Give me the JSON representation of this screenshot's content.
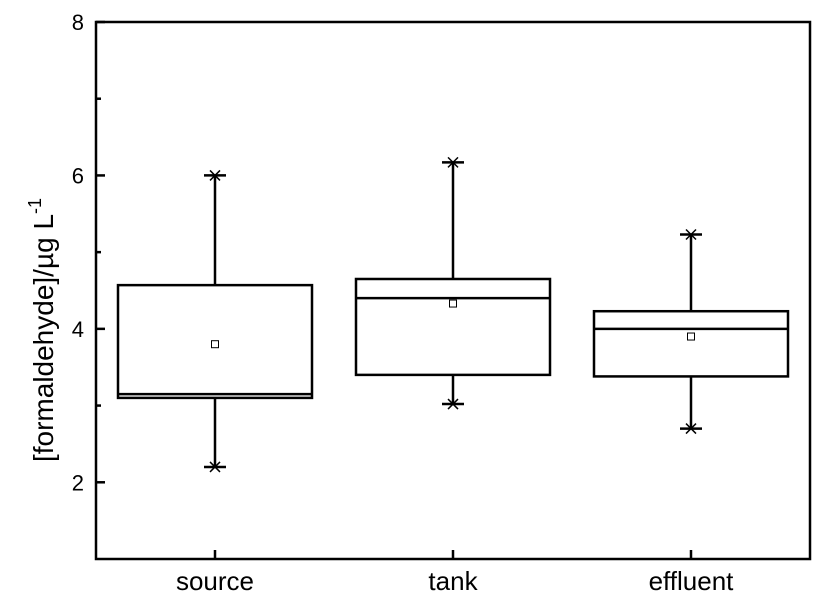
{
  "chart_data": {
    "type": "box",
    "ylabel": "[formaldehyde]/µg L",
    "ylabel_superscript": "-1",
    "ylim": [
      1,
      8
    ],
    "yticks_major": [
      2,
      4,
      6,
      8
    ],
    "yticks_minor": [
      3,
      5,
      7
    ],
    "categories": [
      "source",
      "tank",
      "effluent"
    ],
    "boxes": [
      {
        "category": "source",
        "whisker_low": 2.2,
        "q1": 3.1,
        "median": 3.15,
        "q3": 4.57,
        "whisker_high": 6.0,
        "mean": 3.8
      },
      {
        "category": "tank",
        "whisker_low": 3.02,
        "q1": 3.4,
        "median": 4.4,
        "q3": 4.65,
        "whisker_high": 6.17,
        "mean": 4.33
      },
      {
        "category": "effluent",
        "whisker_low": 2.7,
        "q1": 3.38,
        "median": 4.0,
        "q3": 4.23,
        "whisker_high": 5.23,
        "mean": 3.9
      }
    ],
    "grid": false,
    "legend": "none"
  }
}
